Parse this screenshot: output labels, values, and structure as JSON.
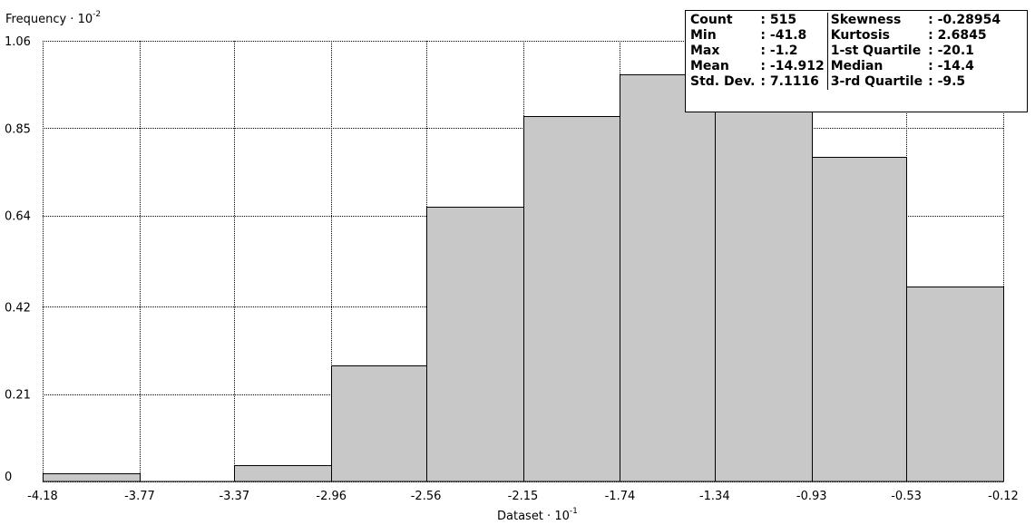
{
  "chart_data": {
    "type": "bar",
    "title": "",
    "ylabel": "Frequency",
    "ylabel_exponent": "-2",
    "xlabel": "Dataset",
    "xlabel_exponent": "-1",
    "x_scale_prefix": "10",
    "bin_edges": [
      -4.18,
      -3.77,
      -3.37,
      -2.96,
      -2.56,
      -2.15,
      -1.74,
      -1.34,
      -0.93,
      -0.53,
      -0.12
    ],
    "x_tick_labels": [
      "-4.18",
      "-3.77",
      "-3.37",
      "-2.96",
      "-2.56",
      "-2.15",
      "-1.74",
      "-1.34",
      "-0.93",
      "-0.53",
      "-0.12"
    ],
    "values": [
      0.02,
      0,
      0.04,
      0.28,
      0.66,
      0.88,
      0.98,
      0.97,
      0.78,
      0.47
    ],
    "y_ticks": [
      0,
      0.21,
      0.42,
      0.64,
      0.85,
      1.06
    ],
    "y_tick_labels": [
      "0",
      "0.21",
      "0.42",
      "0.64",
      "0.85",
      "1.06"
    ],
    "ylim": [
      0,
      1.06
    ],
    "xlim": [
      -4.18,
      -0.12
    ],
    "grid": true,
    "bar_color": "#c8c8c8"
  },
  "stats": {
    "rows": [
      {
        "label1": "Count",
        "value1": ": 515",
        "label2": "Skewness",
        "value2": ": -0.28954"
      },
      {
        "label1": "Min",
        "value1": ": -41.8",
        "label2": "Kurtosis",
        "value2": ": 2.6845"
      },
      {
        "label1": "Max",
        "value1": ": -1.2",
        "label2": "1-st Quartile",
        "value2": ": -20.1"
      },
      {
        "label1": "Mean",
        "value1": ": -14.912",
        "label2": "Median",
        "value2": ": -14.4"
      },
      {
        "label1": "Std. Dev.",
        "value1": ": 7.1116",
        "label2": "3-rd Quartile",
        "value2": ": -9.5"
      }
    ]
  }
}
